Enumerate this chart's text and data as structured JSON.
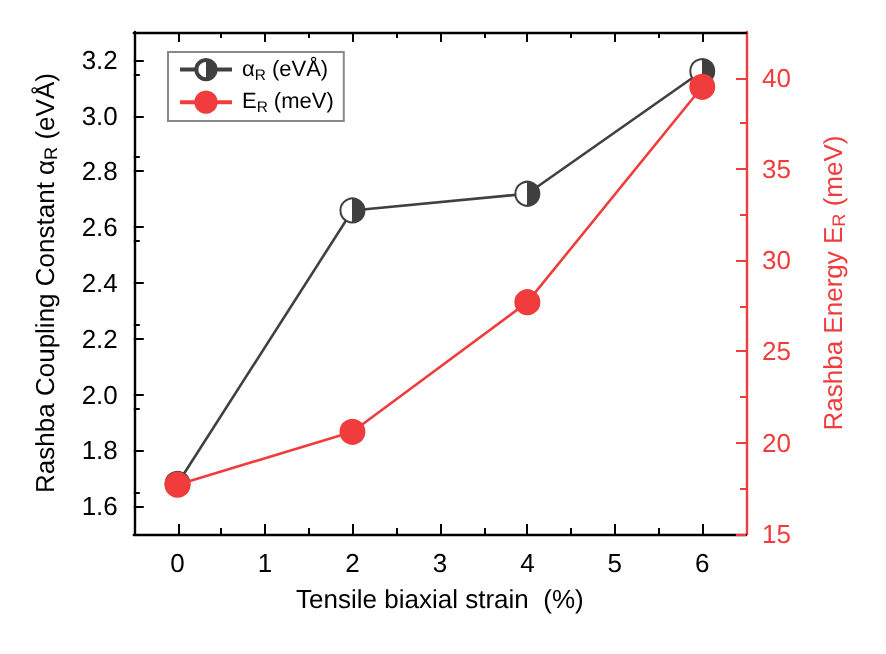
{
  "chart_data": {
    "type": "line",
    "xlabel": "Tensile biaxial strain  (%)",
    "ylabel": "Rashba Coupling Constant α$_{R}$ (eVÅ)",
    "y2label": "Rashba Energy E$_{R}$ (meV)",
    "x": [
      0,
      2,
      4,
      6
    ],
    "series": [
      {
        "name": "α$_{R}$ (eVÅ)",
        "color": "#404040",
        "values": [
          1.68,
          2.66,
          2.72,
          3.16
        ]
      },
      {
        "name": "E$_{R}$ (meV)",
        "color": "#f03c3c",
        "values": [
          17.7,
          20.6,
          27.7,
          39.5
        ],
        "axis": "y2"
      }
    ],
    "xlim": [
      -0.5,
      6.5
    ],
    "xticks": [
      0,
      1,
      2,
      3,
      4,
      5,
      6
    ],
    "ylim": [
      1.5,
      3.3
    ],
    "yticks": [
      1.6,
      1.8,
      {
        "value": 2,
        "label": "2.0"
      },
      2.2,
      2.4,
      2.6,
      2.8,
      {
        "value": 3,
        "label": "3.0"
      },
      3.2
    ],
    "y2lim": [
      15,
      42.5
    ],
    "y2ticks": [
      15,
      20,
      25,
      30,
      35,
      40
    ],
    "grid": false,
    "legend": "top left",
    "marker": "circle",
    "line_style": "solid"
  }
}
